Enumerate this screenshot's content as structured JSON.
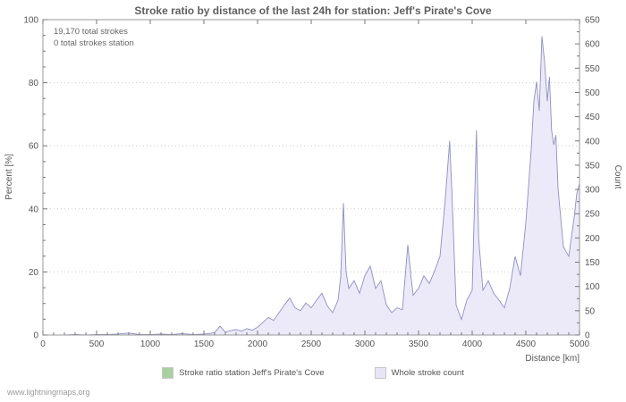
{
  "page": {
    "title": "Stroke ratio by distance of the last 24h for station: Jeff's Pirate's Cove",
    "watermark": "www.lightningmaps.org"
  },
  "annotations": {
    "line1": "19,170 total strokes",
    "line2": "0 total strokes station"
  },
  "axes": {
    "y_left_label": "Percent  [%]",
    "y_right_label": "Count",
    "x_label": "Distance  [km]"
  },
  "legend": [
    {
      "label": "Stroke ratio station Jeff's Pirate's Cove",
      "color": "#a8d0a0"
    },
    {
      "label": "Whole stroke count",
      "color": "#e7e5f7"
    }
  ],
  "colors": {
    "area_fill": "#eceaf9",
    "area_stroke": "#8f8fbf",
    "grid": "#cccccc",
    "frame": "#999999",
    "tick": "#777777"
  },
  "chart_data": {
    "type": "area",
    "title": "Stroke ratio by distance of the last 24h for station: Jeff's Pirate's Cove",
    "xlabel": "Distance [km]",
    "ylabel_left": "Percent [%]",
    "ylabel_right": "Count",
    "xlim": [
      0,
      5000
    ],
    "ylim_left": [
      0,
      100
    ],
    "ylim_right": [
      0,
      650
    ],
    "x_ticks": [
      0,
      500,
      1000,
      1500,
      2000,
      2500,
      3000,
      3500,
      4000,
      4500,
      5000
    ],
    "left_ticks": [
      0,
      20,
      40,
      60,
      80,
      100
    ],
    "right_ticks": [
      0,
      50,
      100,
      150,
      200,
      250,
      300,
      350,
      400,
      450,
      500,
      550,
      600,
      650
    ],
    "grid": "horizontal",
    "legend_position": "bottom",
    "series": [
      {
        "name": "Whole stroke count",
        "axis": "right",
        "points": [
          [
            0,
            0
          ],
          [
            100,
            0
          ],
          [
            200,
            0
          ],
          [
            300,
            1
          ],
          [
            400,
            0
          ],
          [
            500,
            1
          ],
          [
            600,
            1
          ],
          [
            700,
            2
          ],
          [
            800,
            4
          ],
          [
            900,
            1
          ],
          [
            1000,
            1
          ],
          [
            1100,
            2
          ],
          [
            1200,
            1
          ],
          [
            1300,
            3
          ],
          [
            1400,
            1
          ],
          [
            1500,
            2
          ],
          [
            1550,
            3
          ],
          [
            1600,
            5
          ],
          [
            1650,
            18
          ],
          [
            1700,
            6
          ],
          [
            1750,
            9
          ],
          [
            1800,
            11
          ],
          [
            1850,
            8
          ],
          [
            1900,
            13
          ],
          [
            1950,
            10
          ],
          [
            2000,
            16
          ],
          [
            2050,
            26
          ],
          [
            2100,
            36
          ],
          [
            2150,
            30
          ],
          [
            2200,
            46
          ],
          [
            2250,
            62
          ],
          [
            2300,
            76
          ],
          [
            2350,
            56
          ],
          [
            2400,
            50
          ],
          [
            2450,
            66
          ],
          [
            2500,
            56
          ],
          [
            2550,
            72
          ],
          [
            2600,
            86
          ],
          [
            2650,
            60
          ],
          [
            2700,
            46
          ],
          [
            2750,
            72
          ],
          [
            2775,
            120
          ],
          [
            2800,
            272
          ],
          [
            2825,
            130
          ],
          [
            2850,
            96
          ],
          [
            2900,
            112
          ],
          [
            2950,
            86
          ],
          [
            3000,
            122
          ],
          [
            3050,
            142
          ],
          [
            3100,
            96
          ],
          [
            3150,
            112
          ],
          [
            3200,
            62
          ],
          [
            3250,
            46
          ],
          [
            3300,
            56
          ],
          [
            3350,
            52
          ],
          [
            3400,
            186
          ],
          [
            3430,
            120
          ],
          [
            3450,
            82
          ],
          [
            3500,
            96
          ],
          [
            3550,
            122
          ],
          [
            3600,
            106
          ],
          [
            3650,
            132
          ],
          [
            3700,
            162
          ],
          [
            3750,
            282
          ],
          [
            3790,
            400
          ],
          [
            3810,
            300
          ],
          [
            3850,
            62
          ],
          [
            3900,
            32
          ],
          [
            3950,
            72
          ],
          [
            4000,
            92
          ],
          [
            4040,
            422
          ],
          [
            4060,
            200
          ],
          [
            4100,
            92
          ],
          [
            4150,
            112
          ],
          [
            4200,
            86
          ],
          [
            4250,
            72
          ],
          [
            4300,
            56
          ],
          [
            4350,
            96
          ],
          [
            4400,
            162
          ],
          [
            4450,
            122
          ],
          [
            4500,
            232
          ],
          [
            4550,
            382
          ],
          [
            4575,
            482
          ],
          [
            4600,
            522
          ],
          [
            4625,
            462
          ],
          [
            4650,
            616
          ],
          [
            4675,
            562
          ],
          [
            4700,
            482
          ],
          [
            4720,
            532
          ],
          [
            4740,
            422
          ],
          [
            4760,
            392
          ],
          [
            4780,
            412
          ],
          [
            4800,
            302
          ],
          [
            4850,
            182
          ],
          [
            4900,
            162
          ],
          [
            4950,
            242
          ],
          [
            4975,
            292
          ],
          [
            5000,
            312
          ]
        ]
      },
      {
        "name": "Stroke ratio station Jeff's Pirate's Cove",
        "axis": "left",
        "points": []
      }
    ]
  }
}
